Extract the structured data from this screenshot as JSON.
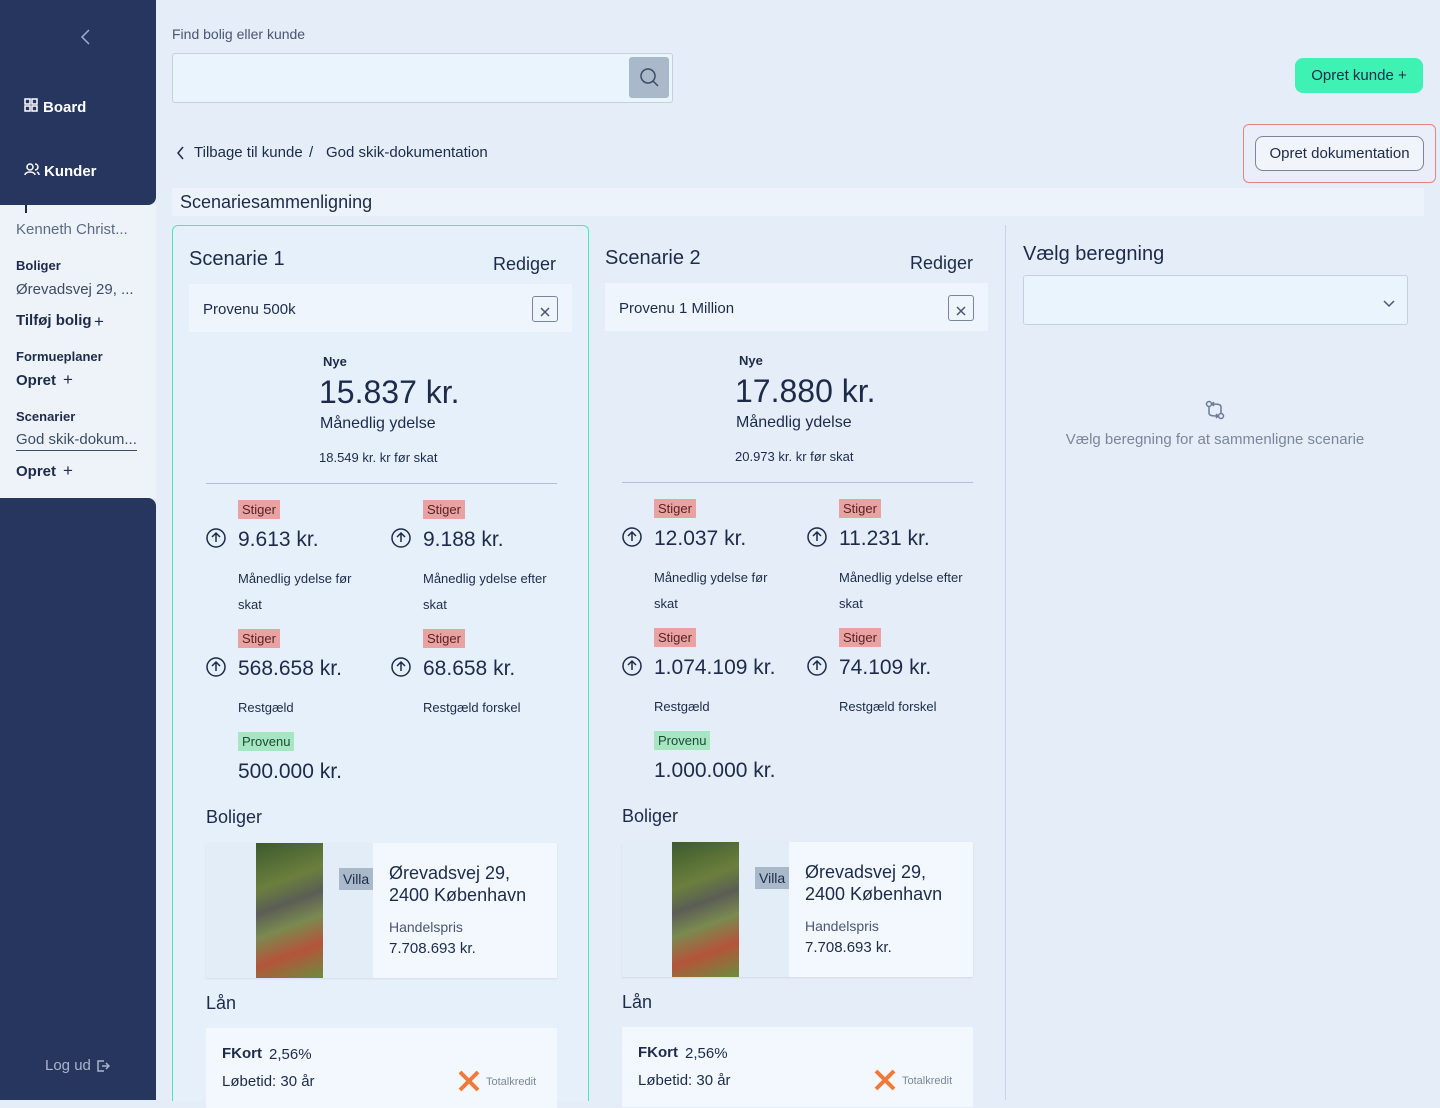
{
  "sidebar": {
    "nav": [
      "Board",
      "Kunder"
    ],
    "customer": "Kenneth Christ...",
    "boliger_label": "Boliger",
    "bolig": "Ørevadsvej 29, ...",
    "add_bolig": "Tilføj bolig",
    "formueplaner_label": "Formueplaner",
    "formueplaner_add": "Opret",
    "scenarier_label": "Scenarier",
    "scenarie": "God skik-dokum...",
    "scenarier_add": "Opret",
    "logout": "Log ud"
  },
  "search": {
    "label": "Find bolig eller kunde"
  },
  "buttons": {
    "create_customer": "Opret kunde",
    "create_documentation": "Opret dokumentation"
  },
  "breadcrumb": {
    "back": "Tilbage til kunde",
    "separator": "/",
    "current": "God skik-dokumentation"
  },
  "section_title": "Scenariesammenligning",
  "scenarios": [
    {
      "title": "Scenarie 1",
      "edit": "Rediger",
      "name": "Provenu 500k",
      "new_label": "Nye",
      "amount": "15.837 kr.",
      "amount_label": "Månedlig ydelse",
      "before_tax": "18.549 kr. kr før skat",
      "metrics": [
        {
          "tag": "Stiger",
          "value": "9.613 kr.",
          "label": "Månedlig ydelse før skat"
        },
        {
          "tag": "Stiger",
          "value": "9.188 kr.",
          "label": "Månedlig ydelse efter skat"
        },
        {
          "tag": "Stiger",
          "value": "568.658 kr.",
          "label": "Restgæld"
        },
        {
          "tag": "Stiger",
          "value": "68.658 kr.",
          "label": "Restgæld forskel"
        }
      ],
      "provenu": {
        "tag": "Provenu",
        "value": "500.000 kr."
      },
      "boliger_title": "Boliger",
      "property": {
        "type": "Villa",
        "address_line1": "Ørevadsvej 29,",
        "address_line2": "2400 København",
        "price_label": "Handelspris",
        "price": "7.708.693 kr."
      },
      "loan_title": "Lån",
      "loan": {
        "name": "FKort",
        "rate": "2,56%",
        "term": "Løbetid: 30 år",
        "lender": "Totalkredit"
      }
    },
    {
      "title": "Scenarie 2",
      "edit": "Rediger",
      "name": "Provenu 1 Million",
      "new_label": "Nye",
      "amount": "17.880 kr.",
      "amount_label": "Månedlig ydelse",
      "before_tax": "20.973 kr. kr før skat",
      "metrics": [
        {
          "tag": "Stiger",
          "value": "12.037 kr.",
          "label": "Månedlig ydelse før skat"
        },
        {
          "tag": "Stiger",
          "value": "11.231 kr.",
          "label": "Månedlig ydelse efter skat"
        },
        {
          "tag": "Stiger",
          "value": "1.074.109 kr.",
          "label": "Restgæld"
        },
        {
          "tag": "Stiger",
          "value": "74.109 kr.",
          "label": "Restgæld forskel"
        }
      ],
      "provenu": {
        "tag": "Provenu",
        "value": "1.000.000 kr."
      },
      "boliger_title": "Boliger",
      "property": {
        "type": "Villa",
        "address_line1": "Ørevadsvej 29,",
        "address_line2": "2400 København",
        "price_label": "Handelspris",
        "price": "7.708.693 kr."
      },
      "loan_title": "Lån",
      "loan": {
        "name": "FKort",
        "rate": "2,56%",
        "term": "Løbetid: 30 år",
        "lender": "Totalkredit"
      }
    }
  ],
  "compare": {
    "title": "Vælg beregning",
    "empty": "Vælg beregning for at sammenligne scenarie"
  }
}
